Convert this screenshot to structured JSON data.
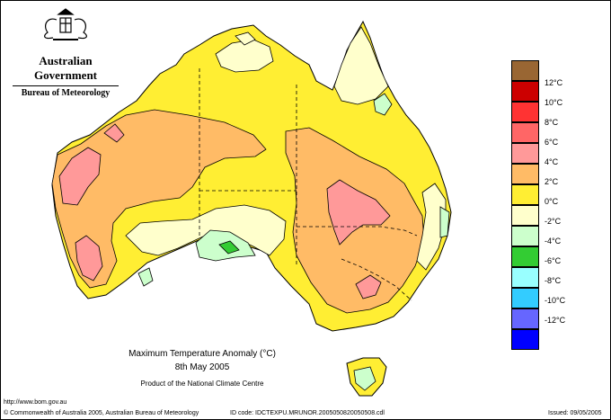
{
  "header": {
    "government": "Australian Government",
    "bureau": "Bureau of Meteorology"
  },
  "map": {
    "title": "Maximum Temperature Anomaly (°C)",
    "date": "8th May 2005",
    "producer": "Product of the National Climate Centre"
  },
  "legend": {
    "items": [
      {
        "label": "",
        "color": "#996633"
      },
      {
        "label": "12°C",
        "color": "#cc0000"
      },
      {
        "label": "10°C",
        "color": "#ff3333"
      },
      {
        "label": "8°C",
        "color": "#ff6666"
      },
      {
        "label": "6°C",
        "color": "#ff9999"
      },
      {
        "label": "4°C",
        "color": "#ffbb66"
      },
      {
        "label": "2°C",
        "color": "#ffee33"
      },
      {
        "label": "0°C",
        "color": "#ffffcc"
      },
      {
        "label": "-2°C",
        "color": "#ccffcc"
      },
      {
        "label": "-4°C",
        "color": "#33cc33"
      },
      {
        "label": "-6°C",
        "color": "#99ffff"
      },
      {
        "label": "-8°C",
        "color": "#33ccff"
      },
      {
        "label": "-10°C",
        "color": "#6666ff"
      },
      {
        "label": "-12°C",
        "color": "#0000ff"
      }
    ]
  },
  "footer": {
    "url": "http://www.bom.gov.au",
    "copyright": "© Commonwealth of Australia 2005, Australian Bureau of Meteorology",
    "id_code": "ID code: IDCTEXPU.MRUNOR.2005050820050508.cdl",
    "issued": "Issued: 09/05/2005"
  }
}
